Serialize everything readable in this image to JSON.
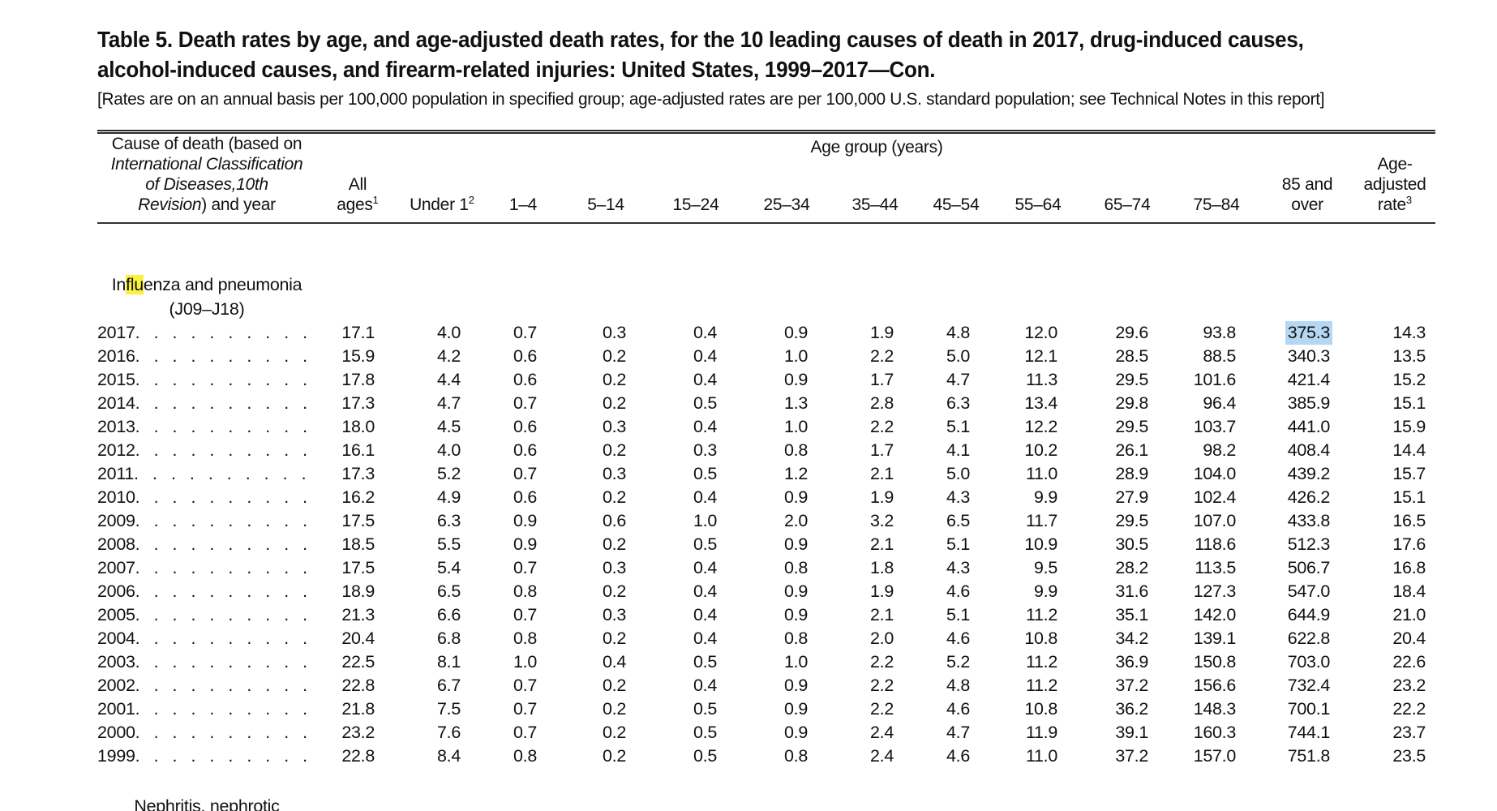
{
  "colors": {
    "find_highlight": "#f9f23d",
    "selection_highlight": "#b5d7f3"
  },
  "page": {
    "title_line1": "Table 5. Death rates by age, and age-adjusted death rates, for the 10 leading causes of death in 2017, drug-induced causes,",
    "title_line2": "alcohol-induced causes, and firearm-related injuries: United States, 1999–2017—Con.",
    "subtitle": "[Rates are on an annual basis per 100,000 population in specified group; age-adjusted rates are per 100,000 U.S. standard population; see Technical Notes in this report]"
  },
  "table": {
    "cause_header": {
      "line1": "Cause of death (based on",
      "line2_italic": "International Classification",
      "line3_italic": "of Diseases,10th",
      "line4_italic": "Revision",
      "line4_rest": ") and year"
    },
    "columns": {
      "all_ages": {
        "line1": "All",
        "line2": "ages",
        "sup": "1"
      },
      "age_group_title": "Age group (years)",
      "ages": [
        {
          "label": "Under 1",
          "sup": "2"
        },
        {
          "label": "1–4"
        },
        {
          "label": "5–14"
        },
        {
          "label": "15–24"
        },
        {
          "label": "25–34"
        },
        {
          "label": "35–44"
        },
        {
          "label": "45–54"
        },
        {
          "label": "55–64"
        },
        {
          "label": "65–74"
        },
        {
          "label": "75–84"
        },
        {
          "label": "85 and",
          "label2": "over"
        }
      ],
      "age_adjusted": {
        "line1": "Age-",
        "line2": "adjusted",
        "line3": "rate",
        "sup": "3"
      }
    },
    "influenza_group": {
      "pre": "In",
      "match": "flu",
      "post": "enza and pneumonia",
      "line2": "(J09–J18)"
    },
    "rows": [
      {
        "year": "2017",
        "values": [
          "17.1",
          "4.0",
          "0.7",
          "0.3",
          "0.4",
          "0.9",
          "1.9",
          "4.8",
          "12.0",
          "29.6",
          "93.8",
          "375.3",
          "14.3"
        ],
        "highlight_col": 11
      },
      {
        "year": "2016",
        "values": [
          "15.9",
          "4.2",
          "0.6",
          "0.2",
          "0.4",
          "1.0",
          "2.2",
          "5.0",
          "12.1",
          "28.5",
          "88.5",
          "340.3",
          "13.5"
        ]
      },
      {
        "year": "2015",
        "values": [
          "17.8",
          "4.4",
          "0.6",
          "0.2",
          "0.4",
          "0.9",
          "1.7",
          "4.7",
          "11.3",
          "29.5",
          "101.6",
          "421.4",
          "15.2"
        ]
      },
      {
        "year": "2014",
        "values": [
          "17.3",
          "4.7",
          "0.7",
          "0.2",
          "0.5",
          "1.3",
          "2.8",
          "6.3",
          "13.4",
          "29.8",
          "96.4",
          "385.9",
          "15.1"
        ]
      },
      {
        "year": "2013",
        "values": [
          "18.0",
          "4.5",
          "0.6",
          "0.3",
          "0.4",
          "1.0",
          "2.2",
          "5.1",
          "12.2",
          "29.5",
          "103.7",
          "441.0",
          "15.9"
        ]
      },
      {
        "year": "2012",
        "values": [
          "16.1",
          "4.0",
          "0.6",
          "0.2",
          "0.3",
          "0.8",
          "1.7",
          "4.1",
          "10.2",
          "26.1",
          "98.2",
          "408.4",
          "14.4"
        ]
      },
      {
        "year": "2011",
        "values": [
          "17.3",
          "5.2",
          "0.7",
          "0.3",
          "0.5",
          "1.2",
          "2.1",
          "5.0",
          "11.0",
          "28.9",
          "104.0",
          "439.2",
          "15.7"
        ]
      },
      {
        "year": "2010",
        "values": [
          "16.2",
          "4.9",
          "0.6",
          "0.2",
          "0.4",
          "0.9",
          "1.9",
          "4.3",
          "9.9",
          "27.9",
          "102.4",
          "426.2",
          "15.1"
        ]
      },
      {
        "year": "2009",
        "values": [
          "17.5",
          "6.3",
          "0.9",
          "0.6",
          "1.0",
          "2.0",
          "3.2",
          "6.5",
          "11.7",
          "29.5",
          "107.0",
          "433.8",
          "16.5"
        ]
      },
      {
        "year": "2008",
        "values": [
          "18.5",
          "5.5",
          "0.9",
          "0.2",
          "0.5",
          "0.9",
          "2.1",
          "5.1",
          "10.9",
          "30.5",
          "118.6",
          "512.3",
          "17.6"
        ]
      },
      {
        "year": "2007",
        "values": [
          "17.5",
          "5.4",
          "0.7",
          "0.3",
          "0.4",
          "0.8",
          "1.8",
          "4.3",
          "9.5",
          "28.2",
          "113.5",
          "506.7",
          "16.8"
        ]
      },
      {
        "year": "2006",
        "values": [
          "18.9",
          "6.5",
          "0.8",
          "0.2",
          "0.4",
          "0.9",
          "1.9",
          "4.6",
          "9.9",
          "31.6",
          "127.3",
          "547.0",
          "18.4"
        ]
      },
      {
        "year": "2005",
        "values": [
          "21.3",
          "6.6",
          "0.7",
          "0.3",
          "0.4",
          "0.9",
          "2.1",
          "5.1",
          "11.2",
          "35.1",
          "142.0",
          "644.9",
          "21.0"
        ]
      },
      {
        "year": "2004",
        "values": [
          "20.4",
          "6.8",
          "0.8",
          "0.2",
          "0.4",
          "0.8",
          "2.0",
          "4.6",
          "10.8",
          "34.2",
          "139.1",
          "622.8",
          "20.4"
        ]
      },
      {
        "year": "2003",
        "values": [
          "22.5",
          "8.1",
          "1.0",
          "0.4",
          "0.5",
          "1.0",
          "2.2",
          "5.2",
          "11.2",
          "36.9",
          "150.8",
          "703.0",
          "22.6"
        ]
      },
      {
        "year": "2002",
        "values": [
          "22.8",
          "6.7",
          "0.7",
          "0.2",
          "0.4",
          "0.9",
          "2.2",
          "4.8",
          "11.2",
          "37.2",
          "156.6",
          "732.4",
          "23.2"
        ]
      },
      {
        "year": "2001",
        "values": [
          "21.8",
          "7.5",
          "0.7",
          "0.2",
          "0.5",
          "0.9",
          "2.2",
          "4.6",
          "10.8",
          "36.2",
          "148.3",
          "700.1",
          "22.2"
        ]
      },
      {
        "year": "2000",
        "values": [
          "23.2",
          "7.6",
          "0.7",
          "0.2",
          "0.5",
          "0.9",
          "2.4",
          "4.7",
          "11.9",
          "39.1",
          "160.3",
          "744.1",
          "23.7"
        ]
      },
      {
        "year": "1999",
        "values": [
          "22.8",
          "8.4",
          "0.8",
          "0.2",
          "0.5",
          "0.8",
          "2.4",
          "4.6",
          "11.0",
          "37.2",
          "157.0",
          "751.8",
          "23.5"
        ]
      }
    ],
    "next_group_partial": "Nephritis, nephrotic"
  }
}
